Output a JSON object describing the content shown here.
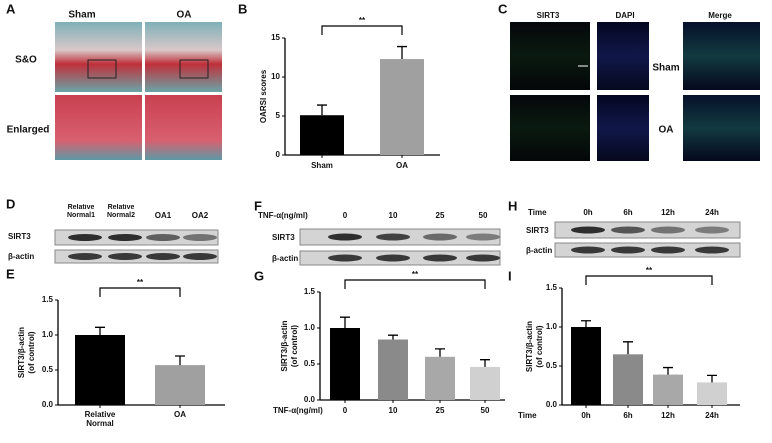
{
  "panel_labels": [
    "A",
    "B",
    "C",
    "D",
    "E",
    "F",
    "G",
    "H",
    "I"
  ],
  "panel_a": {
    "columns": [
      "Sham",
      "OA"
    ],
    "rows": [
      "S&O",
      "Enlarged"
    ]
  },
  "panel_c": {
    "columns": [
      "SIRT3",
      "DAPI",
      "Merge"
    ],
    "rows": [
      "Sham",
      "OA"
    ]
  },
  "panel_d": {
    "lanes": [
      "Relative Normal1",
      "Relative Normal2",
      "OA1",
      "OA2"
    ],
    "rows": [
      "SIRT3",
      "β-actin"
    ]
  },
  "panel_f": {
    "condition": "TNF-α(ng/ml)",
    "lanes": [
      "0",
      "10",
      "25",
      "50"
    ],
    "rows": [
      "SIRT3",
      "β-actin"
    ]
  },
  "panel_h": {
    "condition": "Time",
    "lanes": [
      "0h",
      "6h",
      "12h",
      "24h"
    ],
    "rows": [
      "SIRT3",
      "β-actin"
    ]
  },
  "chart_data": [
    {
      "type": "bar",
      "ylabel": "OARSI scores",
      "categories": [
        "Sham",
        "OA"
      ],
      "values": [
        5.1,
        12.3
      ],
      "errors": [
        1.3,
        1.6
      ],
      "colors": [
        "#000000",
        "#a0a0a0"
      ],
      "ylim": [
        0,
        15
      ],
      "yticks": [
        0,
        5,
        10,
        15
      ],
      "significance": "**"
    },
    {
      "type": "bar",
      "ylabel": [
        "SIRT3/β-actin",
        "(of control)"
      ],
      "categories": [
        "Relative Normal",
        "OA"
      ],
      "values": [
        1.0,
        0.57
      ],
      "errors": [
        0.11,
        0.13
      ],
      "colors": [
        "#000000",
        "#a0a0a0"
      ],
      "ylim": [
        0,
        1.5
      ],
      "yticks": [
        {
          "value": 0,
          "label": "0.0"
        },
        {
          "value": 0.5,
          "label": "0.5"
        },
        {
          "value": 1,
          "label": "1.0"
        },
        {
          "value": 1.5,
          "label": "1.5"
        }
      ],
      "significance": "**"
    },
    {
      "type": "bar",
      "ylabel": [
        "SIRT3/β-actin",
        "(of control)"
      ],
      "xlabel": "TNF-α(ng/ml)",
      "categories": [
        "0",
        "10",
        "25",
        "50"
      ],
      "values": [
        1.0,
        0.84,
        0.6,
        0.46
      ],
      "errors": [
        0.15,
        0.06,
        0.11,
        0.1
      ],
      "colors": [
        "#000000",
        "#8a8a8a",
        "#a8a8a8",
        "#d0d0d0"
      ],
      "ylim": [
        0,
        1.5
      ],
      "yticks": [
        {
          "value": 0,
          "label": "0.0"
        },
        {
          "value": 0.5,
          "label": "0.5"
        },
        {
          "value": 1,
          "label": "1.0"
        },
        {
          "value": 1.5,
          "label": "1.5"
        }
      ],
      "significance": "**"
    },
    {
      "type": "bar",
      "ylabel": [
        "SIRT3/β-actin",
        "(of control)"
      ],
      "xlabel": "Time",
      "categories": [
        "0h",
        "6h",
        "12h",
        "24h"
      ],
      "values": [
        1.0,
        0.65,
        0.39,
        0.29
      ],
      "errors": [
        0.08,
        0.16,
        0.09,
        0.09
      ],
      "colors": [
        "#000000",
        "#8a8a8a",
        "#a8a8a8",
        "#d0d0d0"
      ],
      "ylim": [
        0,
        1.5
      ],
      "yticks": [
        {
          "value": 0,
          "label": "0.0"
        },
        {
          "value": 0.5,
          "label": "0.5"
        },
        {
          "value": 1,
          "label": "1.0"
        },
        {
          "value": 1.5,
          "label": "1.5"
        }
      ],
      "significance": "**"
    }
  ]
}
